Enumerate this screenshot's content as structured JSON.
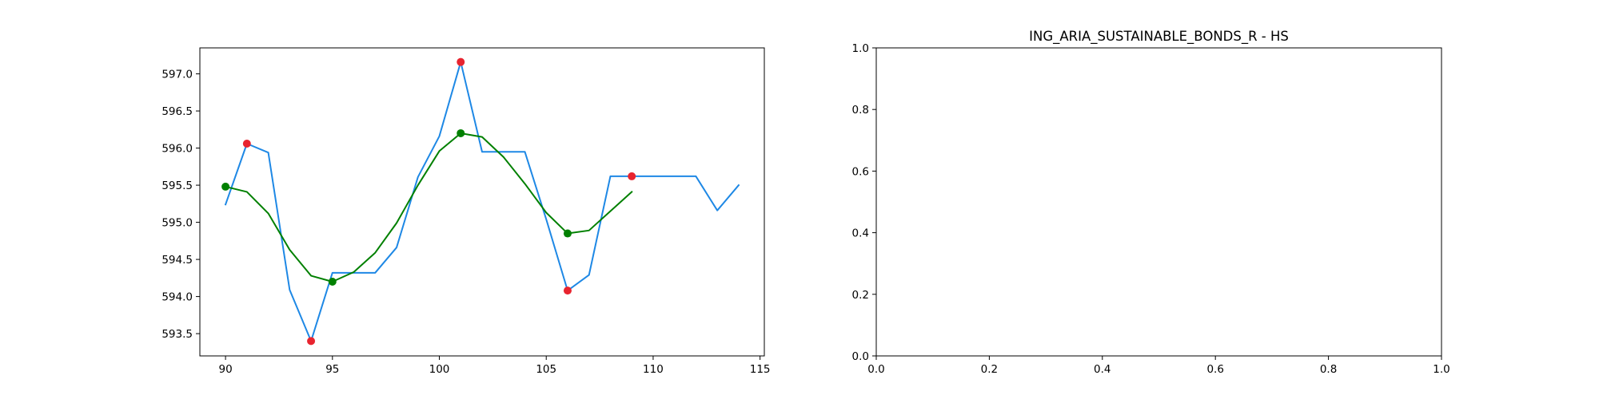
{
  "chart_data": [
    {
      "type": "line",
      "title": "",
      "xlabel": "",
      "ylabel": "",
      "xlim": [
        88.8,
        115.2
      ],
      "ylim": [
        593.2,
        597.35
      ],
      "xticks": [
        90,
        95,
        100,
        105,
        110,
        115
      ],
      "yticks": [
        593.5,
        594.0,
        594.5,
        595.0,
        595.5,
        596.0,
        596.5,
        597.0
      ],
      "grid": false,
      "legend": "none",
      "series": [
        {
          "color": "#1e88e5",
          "style": "line",
          "x": [
            90,
            91,
            92,
            93,
            94,
            95,
            96,
            97,
            98,
            99,
            100,
            101,
            102,
            103,
            104,
            105,
            106,
            107,
            108,
            109,
            110,
            111,
            112,
            113,
            114
          ],
          "y": [
            595.24,
            596.06,
            595.94,
            594.09,
            593.4,
            594.32,
            594.32,
            594.32,
            594.66,
            595.61,
            596.16,
            597.16,
            595.95,
            595.95,
            595.95,
            595.04,
            594.08,
            594.29,
            595.62,
            595.62,
            595.62,
            595.62,
            595.62,
            595.16,
            595.5
          ]
        },
        {
          "color": "#008000",
          "style": "line",
          "x": [
            90,
            91,
            92,
            93,
            94,
            95,
            96,
            97,
            98,
            99,
            100,
            101,
            102,
            103,
            104,
            105,
            106,
            107,
            108,
            109
          ],
          "y": [
            595.48,
            595.41,
            595.12,
            594.63,
            594.28,
            594.2,
            594.33,
            594.59,
            594.99,
            595.5,
            595.96,
            596.2,
            596.15,
            595.88,
            595.52,
            595.13,
            594.85,
            594.89,
            595.15,
            595.41
          ]
        },
        {
          "color": "#e8242f",
          "style": "scatter",
          "x": [
            91,
            94,
            101,
            106,
            109
          ],
          "y": [
            596.06,
            593.4,
            597.16,
            594.08,
            595.62
          ]
        },
        {
          "color": "#008000",
          "style": "scatter",
          "x": [
            90,
            95,
            101,
            106
          ],
          "y": [
            595.48,
            594.2,
            596.2,
            594.85
          ]
        }
      ]
    },
    {
      "type": "line",
      "title": "ING_ARIA_SUSTAINABLE_BONDS_R - HS",
      "xlabel": "",
      "ylabel": "",
      "xlim": [
        0.0,
        1.0
      ],
      "ylim": [
        0.0,
        1.0
      ],
      "xticks": [
        0.0,
        0.2,
        0.4,
        0.6,
        0.8,
        1.0
      ],
      "yticks": [
        0.0,
        0.2,
        0.4,
        0.6,
        0.8,
        1.0
      ],
      "grid": false,
      "legend": "none",
      "series": []
    }
  ]
}
